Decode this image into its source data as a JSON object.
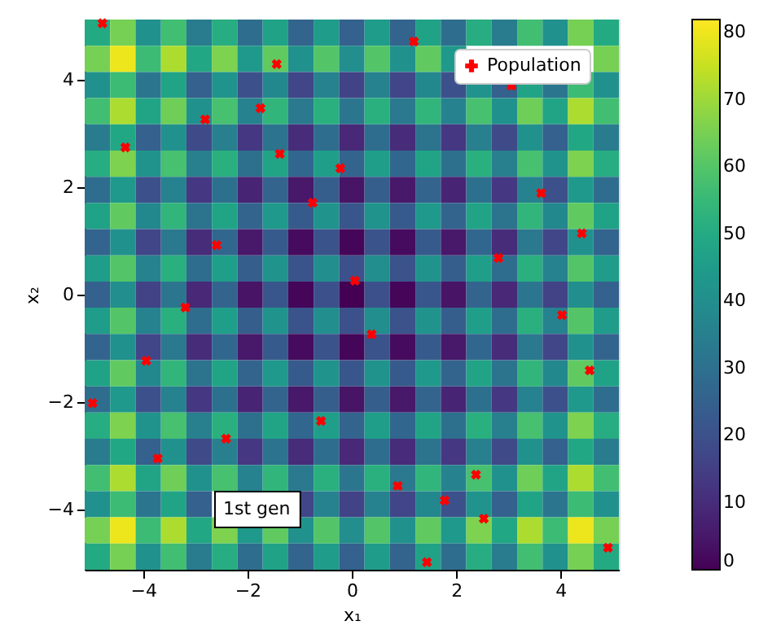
{
  "chart_data": {
    "type": "heatmap",
    "xlabel": "x₁",
    "ylabel": "x₂",
    "cells": [
      [
        50,
        65,
        41,
        57,
        34,
        51,
        29,
        47,
        26,
        45,
        25,
        45,
        26,
        47,
        29,
        51,
        34,
        57,
        41,
        65,
        50
      ],
      [
        65,
        80,
        56,
        72,
        49,
        66,
        44,
        62,
        41,
        60,
        40,
        60,
        41,
        62,
        44,
        null,
        null,
        null,
        null,
        null,
        65
      ],
      [
        41,
        56,
        32,
        48,
        25,
        42,
        20,
        38,
        17,
        36,
        16,
        36,
        17,
        38,
        20,
        42,
        25,
        48,
        32,
        56,
        41
      ],
      [
        57,
        72,
        48,
        64,
        41,
        58,
        36,
        54,
        33,
        52,
        32,
        52,
        33,
        54,
        36,
        58,
        41,
        64,
        48,
        72,
        57
      ],
      [
        34,
        49,
        25,
        41,
        18,
        35,
        13,
        31,
        10,
        29,
        9,
        29,
        10,
        31,
        13,
        35,
        18,
        41,
        25,
        49,
        34
      ],
      [
        51,
        66,
        42,
        58,
        35,
        52,
        30,
        48,
        27,
        46,
        26,
        46,
        27,
        48,
        30,
        52,
        35,
        58,
        42,
        66,
        51
      ],
      [
        29,
        44,
        20,
        36,
        13,
        30,
        8,
        26,
        5,
        24,
        4,
        24,
        5,
        26,
        8,
        30,
        13,
        36,
        20,
        44,
        29
      ],
      [
        47,
        62,
        38,
        54,
        31,
        48,
        26,
        44,
        23,
        42,
        22,
        42,
        23,
        44,
        26,
        48,
        31,
        54,
        38,
        62,
        47
      ],
      [
        26,
        41,
        17,
        33,
        10,
        27,
        5,
        23,
        2,
        21,
        1,
        21,
        2,
        23,
        5,
        27,
        10,
        33,
        17,
        41,
        26
      ],
      [
        45,
        60,
        36,
        52,
        29,
        46,
        24,
        42,
        21,
        40,
        20,
        40,
        21,
        42,
        24,
        46,
        29,
        52,
        36,
        60,
        45
      ],
      [
        25,
        40,
        16,
        32,
        9,
        26,
        4,
        22,
        1,
        20,
        0,
        20,
        1,
        22,
        4,
        26,
        9,
        32,
        16,
        40,
        25
      ],
      [
        45,
        60,
        36,
        52,
        29,
        46,
        24,
        42,
        21,
        40,
        20,
        40,
        21,
        42,
        24,
        46,
        29,
        52,
        36,
        60,
        45
      ],
      [
        26,
        41,
        17,
        33,
        10,
        27,
        5,
        23,
        2,
        21,
        1,
        21,
        2,
        23,
        5,
        27,
        10,
        33,
        17,
        41,
        26
      ],
      [
        47,
        62,
        38,
        54,
        31,
        48,
        26,
        44,
        23,
        42,
        22,
        42,
        23,
        44,
        26,
        48,
        31,
        54,
        38,
        62,
        47
      ],
      [
        29,
        44,
        20,
        36,
        13,
        30,
        8,
        26,
        5,
        24,
        4,
        24,
        5,
        26,
        8,
        30,
        13,
        36,
        20,
        44,
        29
      ],
      [
        51,
        66,
        42,
        58,
        35,
        52,
        30,
        48,
        27,
        46,
        26,
        46,
        27,
        48,
        30,
        52,
        35,
        58,
        42,
        66,
        51
      ],
      [
        34,
        49,
        25,
        41,
        18,
        35,
        13,
        31,
        10,
        29,
        9,
        29,
        10,
        31,
        13,
        35,
        18,
        41,
        25,
        49,
        34
      ],
      [
        57,
        72,
        48,
        64,
        41,
        58,
        36,
        54,
        33,
        52,
        32,
        52,
        33,
        54,
        36,
        58,
        41,
        64,
        48,
        72,
        57
      ],
      [
        41,
        56,
        32,
        48,
        25,
        null,
        null,
        null,
        17,
        36,
        16,
        36,
        17,
        38,
        20,
        42,
        25,
        48,
        32,
        56,
        41
      ],
      [
        65,
        80,
        56,
        72,
        49,
        66,
        44,
        62,
        41,
        60,
        40,
        60,
        41,
        62,
        44,
        66,
        49,
        72,
        56,
        80,
        65
      ],
      [
        50,
        65,
        41,
        57,
        34,
        51,
        29,
        47,
        26,
        45,
        25,
        45,
        26,
        47,
        29,
        51,
        34,
        57,
        41,
        65,
        50
      ]
    ],
    "clim": [
      0,
      82
    ],
    "cticks": [
      0,
      10,
      20,
      30,
      40,
      50,
      60,
      70,
      80
    ],
    "xlim": [
      -5.12,
      5.12
    ],
    "ylim": [
      -5.12,
      5.12
    ],
    "xticks": [
      -4,
      -2,
      0,
      2,
      4
    ],
    "yticks": [
      -4,
      -2,
      0,
      2,
      4
    ],
    "series": [
      {
        "type": "scatter",
        "name": "Population",
        "color": "#ff0000",
        "marker": "cross",
        "x": [
          -4.78,
          -4.34,
          -2.81,
          -1.75,
          -1.44,
          -1.38,
          -0.75,
          -0.22,
          -2.59,
          0.06,
          -3.19,
          1.19,
          3.06,
          3.63,
          4.41,
          2.81,
          4.03,
          0.38,
          4.56,
          2.38,
          0.88,
          1.78,
          2.53,
          1.44,
          4.91,
          -3.94,
          -4.97,
          -0.59,
          -2.41,
          -3.72
        ],
        "values": [
          5.05,
          2.74,
          3.26,
          3.47,
          4.29,
          2.62,
          1.71,
          2.35,
          0.92,
          0.26,
          -0.24,
          4.71,
          3.89,
          1.89,
          1.14,
          0.68,
          -0.38,
          -0.74,
          -1.41,
          -3.35,
          -3.56,
          -3.83,
          -4.17,
          -4.98,
          -4.71,
          -1.23,
          -2.02,
          -2.35,
          -2.68,
          -3.05
        ]
      }
    ],
    "legend": "top right",
    "grid": false,
    "annotations": [
      "1st gen"
    ]
  }
}
